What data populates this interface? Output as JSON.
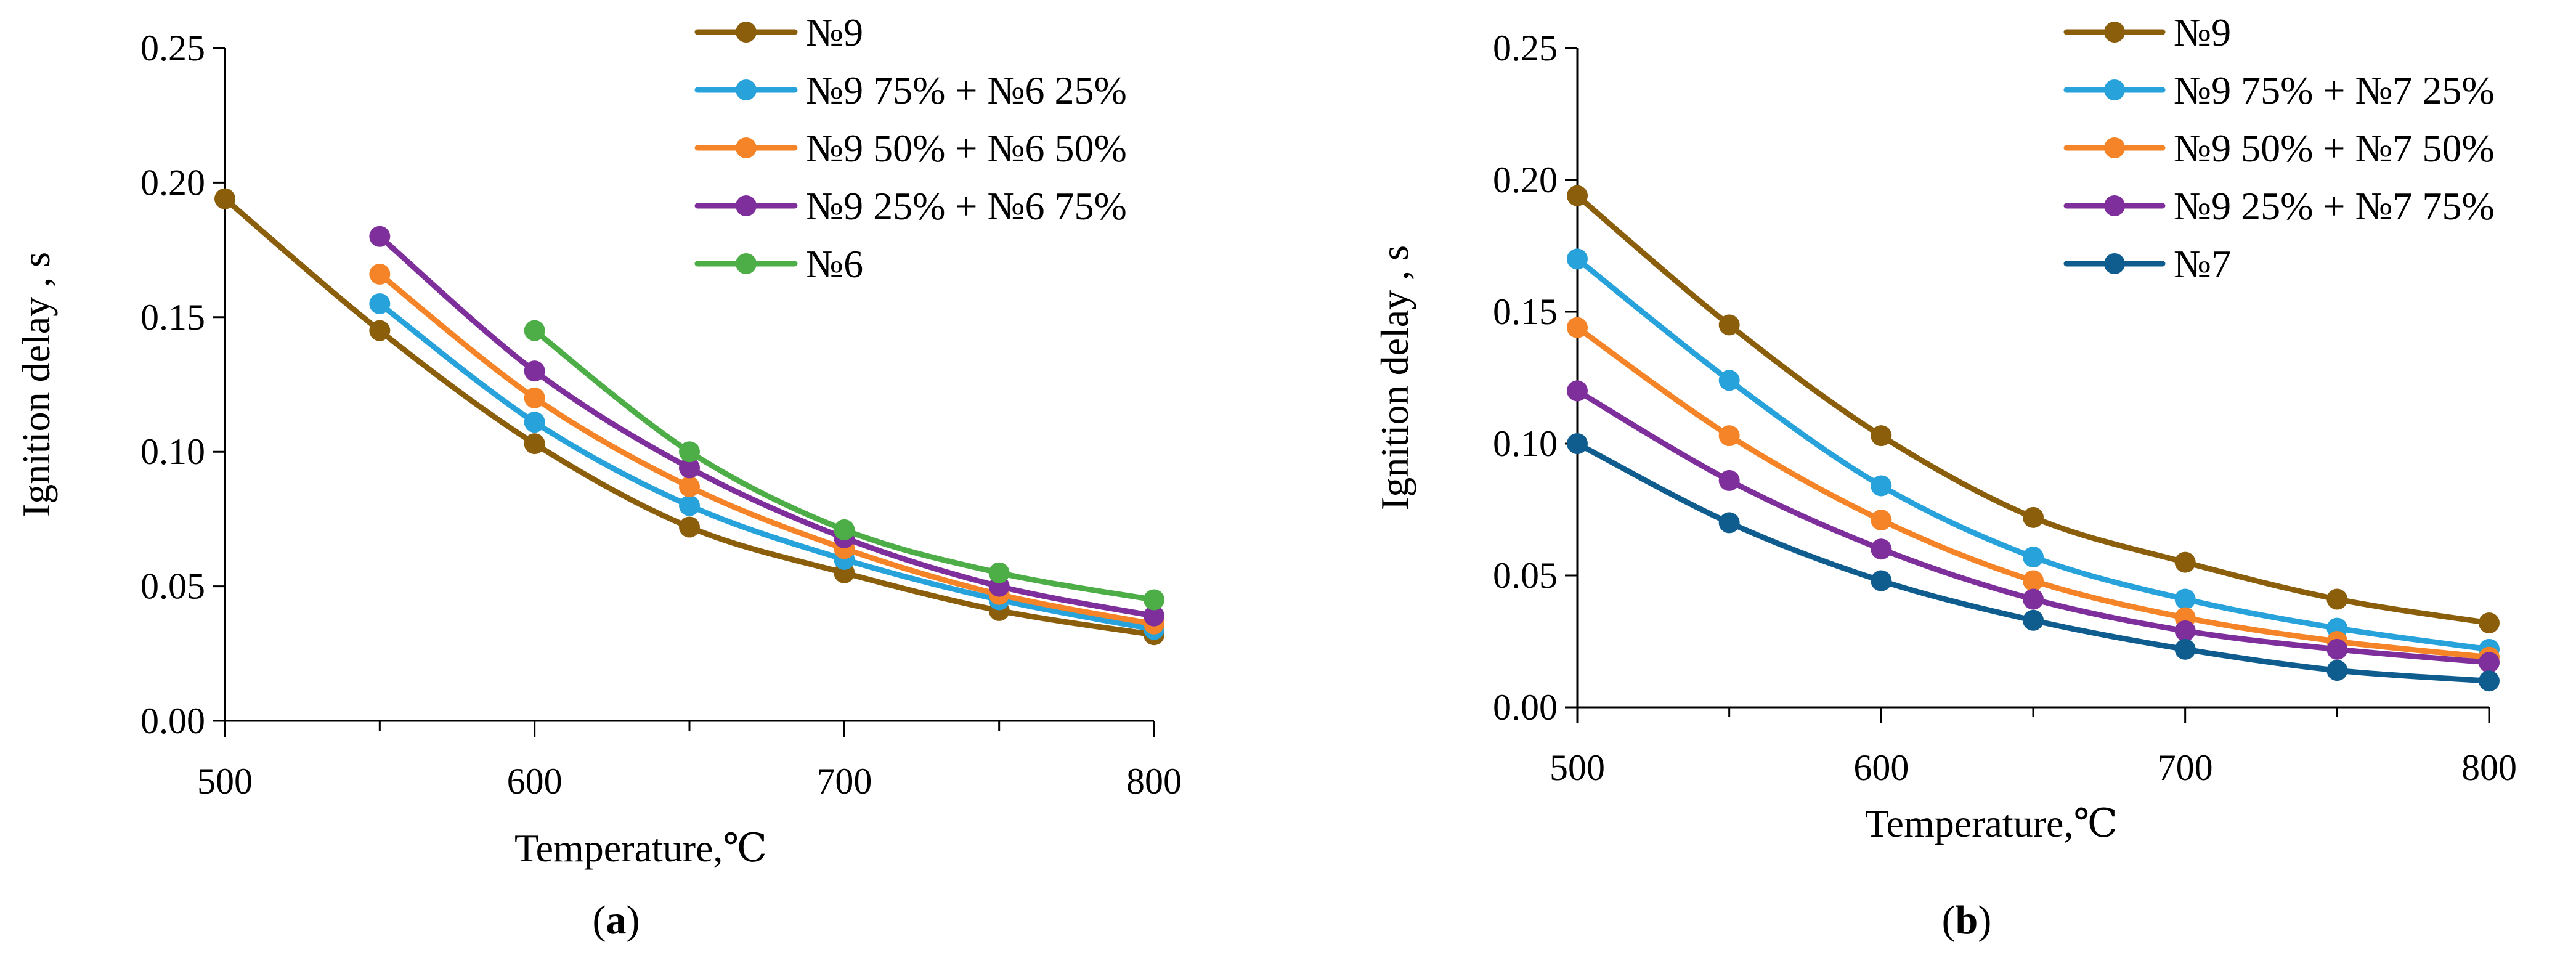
{
  "figure": {
    "panel_labels": [
      {
        "open": "(",
        "letter": "a",
        "close": ")"
      },
      {
        "open": "(",
        "letter": "b",
        "close": ")"
      }
    ]
  },
  "chart_data": [
    {
      "type": "line",
      "panel": "a",
      "xlabel": "Temperature,℃",
      "ylabel": "Ignition delay , s",
      "xlim": [
        500,
        800
      ],
      "ylim": [
        0,
        0.25
      ],
      "x_ticks": [
        500,
        600,
        700,
        800
      ],
      "x_tick_labels": [
        "500",
        "600",
        "700",
        "800"
      ],
      "y_ticks": [
        0,
        0.05,
        0.1,
        0.15,
        0.2,
        0.25
      ],
      "y_tick_labels": [
        "0.00",
        "0.05",
        "0.10",
        "0.15",
        "0.20",
        "0.25"
      ],
      "grid": false,
      "legend_position": "top-right",
      "series": [
        {
          "name": "№9",
          "color": "#8B5E0B",
          "x": [
            500,
            550,
            600,
            650,
            700,
            750,
            800
          ],
          "y": [
            0.194,
            0.145,
            0.103,
            0.072,
            0.055,
            0.041,
            0.032
          ]
        },
        {
          "name": "№9 75% + №6 25%",
          "color": "#27A2DB",
          "x": [
            550,
            600,
            650,
            700,
            750,
            800
          ],
          "y": [
            0.155,
            0.111,
            0.08,
            0.06,
            0.045,
            0.034
          ]
        },
        {
          "name": "№9 50% + №6 50%",
          "color": "#F58327",
          "x": [
            550,
            600,
            650,
            700,
            750,
            800
          ],
          "y": [
            0.166,
            0.12,
            0.087,
            0.064,
            0.047,
            0.036
          ]
        },
        {
          "name": "№9 25% + №6 75%",
          "color": "#7E2F9B",
          "x": [
            550,
            600,
            650,
            700,
            750,
            800
          ],
          "y": [
            0.18,
            0.13,
            0.094,
            0.068,
            0.05,
            0.039
          ]
        },
        {
          "name": "№6",
          "color": "#4DAE48",
          "x": [
            600,
            650,
            700,
            750,
            800
          ],
          "y": [
            0.145,
            0.1,
            0.071,
            0.055,
            0.045
          ]
        }
      ]
    },
    {
      "type": "line",
      "panel": "b",
      "xlabel": "Temperature,℃",
      "ylabel": "Ignition delay , s",
      "xlim": [
        500,
        800
      ],
      "ylim": [
        0,
        0.25
      ],
      "x_ticks": [
        500,
        600,
        700,
        800
      ],
      "x_tick_labels": [
        "500",
        "600",
        "700",
        "800"
      ],
      "y_ticks": [
        0,
        0.05,
        0.1,
        0.15,
        0.2,
        0.25
      ],
      "y_tick_labels": [
        "0.00",
        "0.05",
        "0.10",
        "0.15",
        "0.20",
        "0.25"
      ],
      "grid": false,
      "legend_position": "top-right",
      "series": [
        {
          "name": "№9",
          "color": "#8B5E0B",
          "x": [
            500,
            550,
            600,
            650,
            700,
            750,
            800
          ],
          "y": [
            0.194,
            0.145,
            0.103,
            0.072,
            0.055,
            0.041,
            0.032
          ]
        },
        {
          "name": "№9 75% + №7 25%",
          "color": "#27A2DB",
          "x": [
            500,
            550,
            600,
            650,
            700,
            750,
            800
          ],
          "y": [
            0.17,
            0.124,
            0.084,
            0.057,
            0.041,
            0.03,
            0.022
          ]
        },
        {
          "name": "№9 50% + №7 50%",
          "color": "#F58327",
          "x": [
            500,
            550,
            600,
            650,
            700,
            750,
            800
          ],
          "y": [
            0.144,
            0.103,
            0.071,
            0.048,
            0.034,
            0.025,
            0.019
          ]
        },
        {
          "name": "№9 25% + №7 75%",
          "color": "#7E2F9B",
          "x": [
            500,
            550,
            600,
            650,
            700,
            750,
            800
          ],
          "y": [
            0.12,
            0.086,
            0.06,
            0.041,
            0.029,
            0.022,
            0.017
          ]
        },
        {
          "name": "№7",
          "color": "#0F5D8F",
          "x": [
            500,
            550,
            600,
            650,
            700,
            750,
            800
          ],
          "y": [
            0.1,
            0.07,
            0.048,
            0.033,
            0.022,
            0.014,
            0.01
          ]
        }
      ]
    }
  ]
}
